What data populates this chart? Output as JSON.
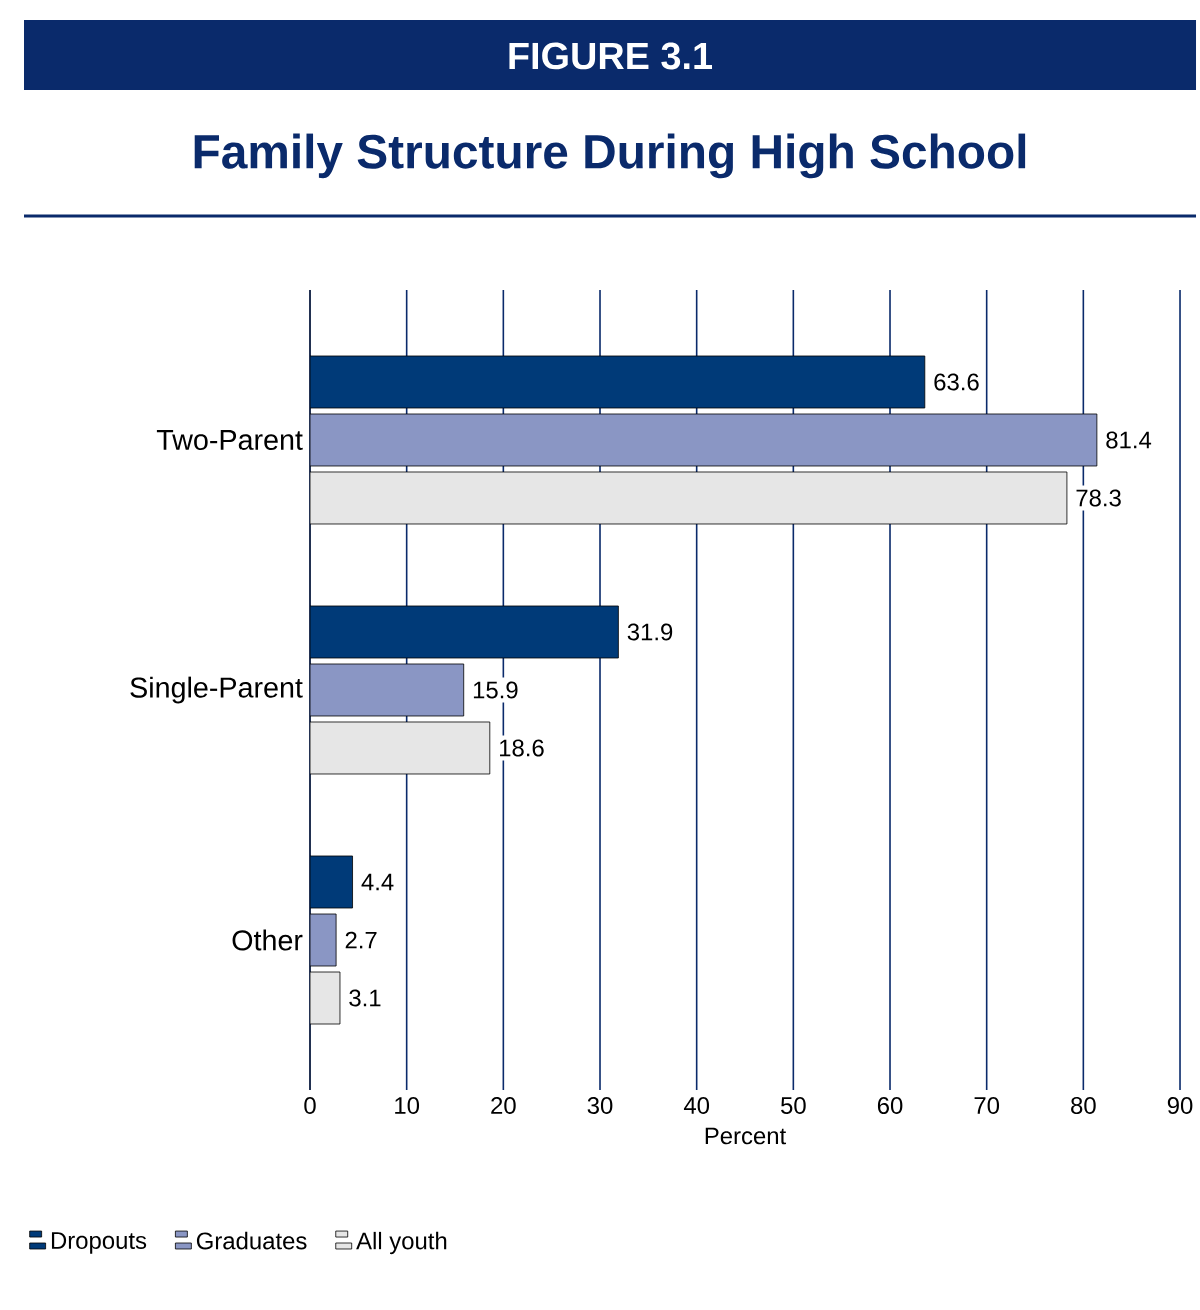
{
  "chart_data": {
    "type": "bar",
    "orientation": "horizontal",
    "title": "Family Structure During High School",
    "annotations": [
      "FIGURE 3.1"
    ],
    "categories": [
      "Two-Parent",
      "Single-Parent",
      "Other"
    ],
    "series": [
      {
        "name": "Dropouts",
        "color": "#003a78",
        "values": [
          63.6,
          31.9,
          4.4
        ]
      },
      {
        "name": "Graduates",
        "color": "#8a96c4",
        "values": [
          81.4,
          15.9,
          2.7
        ]
      },
      {
        "name": "All youth",
        "color": "#e6e6e6",
        "values": [
          78.3,
          18.6,
          3.1
        ]
      }
    ],
    "xlabel": "Percent",
    "xlim": [
      0,
      90
    ],
    "xticks": [
      0,
      10,
      20,
      30,
      40,
      50,
      60,
      70,
      80,
      90
    ],
    "grid": "x",
    "legend": "bottom",
    "data_labels": true
  }
}
